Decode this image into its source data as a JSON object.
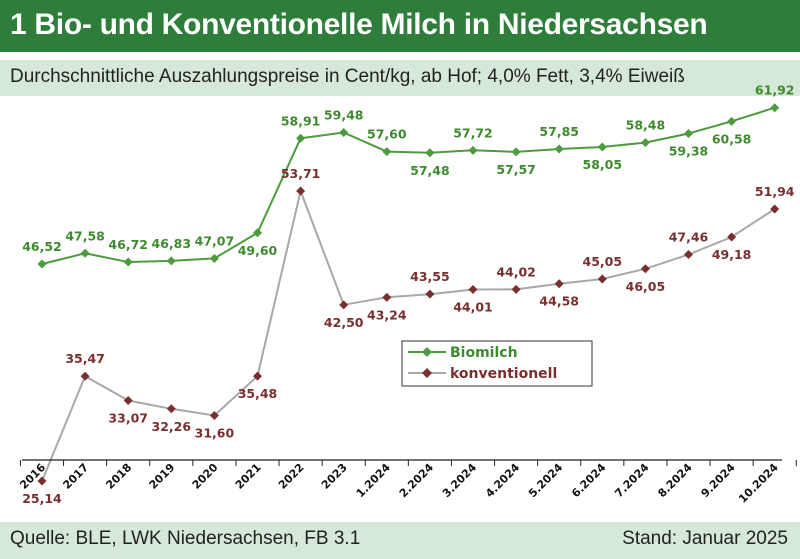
{
  "header": {
    "title": "1 Bio- und Konventionelle Milch in Niedersachsen",
    "subtitle": "Durchschnittliche Auszahlungspreise in Cent/kg, ab Hof; 4,0% Fett, 3,4% Eiweiß"
  },
  "footer": {
    "source": "Quelle: BLE, LWK Niedersachsen, FB 3.1",
    "stand": "Stand: Januar 2025"
  },
  "colors": {
    "header_bg": "#2e7d3b",
    "band_bg": "#d6e8d8",
    "bio_line": "#4e9a3e",
    "bio_label": "#3e8a2e",
    "konv_line": "#a8a8a8",
    "konv_marker": "#7a2f2f",
    "konv_label": "#7a2f2f"
  },
  "chart_data": {
    "type": "line",
    "categories": [
      "2016",
      "2017",
      "2018",
      "2019",
      "2020",
      "2021",
      "2022",
      "2023",
      "1.2024",
      "2.2024",
      "3.2024",
      "4.2024",
      "5.2024",
      "6.2024",
      "7.2024",
      "8.2024",
      "9.2024",
      "10.2024"
    ],
    "series": [
      {
        "name": "Biomilch",
        "values": [
          46.52,
          47.58,
          46.72,
          46.83,
          47.07,
          49.6,
          58.91,
          59.48,
          57.6,
          57.48,
          57.72,
          57.57,
          57.85,
          58.05,
          58.48,
          59.38,
          60.58,
          61.92
        ],
        "labels": [
          "46,52",
          "47,58",
          "46,72",
          "46,83",
          "47,07",
          "49,60",
          "58,91",
          "59,48",
          "57,60",
          "57,48",
          "57,72",
          "57,57",
          "57,85",
          "58,05",
          "58,48",
          "59,38",
          "60,58",
          "61,92"
        ]
      },
      {
        "name": "konventionell",
        "values": [
          25.14,
          35.47,
          33.07,
          32.26,
          31.6,
          35.48,
          53.71,
          42.5,
          43.24,
          43.55,
          44.01,
          44.02,
          44.58,
          45.05,
          46.05,
          47.46,
          49.18,
          51.94
        ],
        "labels": [
          "25,14",
          "35,47",
          "33,07",
          "32,26",
          "31,60",
          "35,48",
          "53,71",
          "42,50",
          "43,24",
          "43,55",
          "44,01",
          "44,02",
          "44,58",
          "45,05",
          "46,05",
          "47,46",
          "49,18",
          "51,94"
        ]
      }
    ],
    "title": "",
    "xlabel": "",
    "ylabel": "",
    "ylim": [
      24,
      64
    ],
    "grid": false,
    "legend": "center"
  }
}
